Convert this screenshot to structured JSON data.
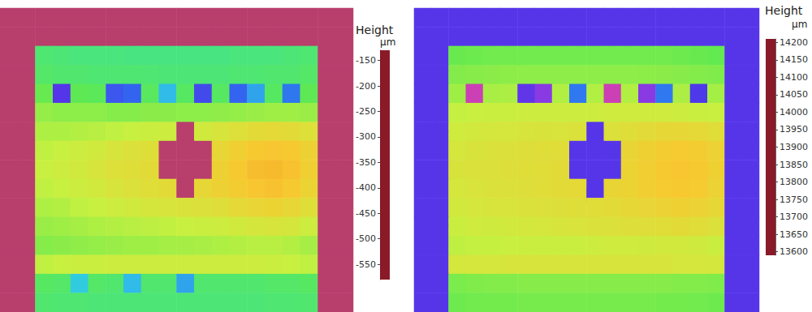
{
  "chart_data": [
    {
      "type": "heatmap",
      "tick_labels": false,
      "colorbar_label": "Height",
      "colorbar_unit": "µm",
      "colorbar_lim": [
        -580,
        -130
      ],
      "colorbar_ticks": [
        -150,
        -200,
        -250,
        -300,
        -350,
        -400,
        -450,
        -500,
        -550
      ],
      "cells": [
        [
          -545,
          -545,
          -545,
          -545,
          -545,
          -545,
          -545,
          -545,
          -545,
          -545,
          -545,
          -545,
          -545,
          -545,
          -545,
          -545,
          -545,
          -545,
          -545,
          -545
        ],
        [
          -545,
          -545,
          -545,
          -545,
          -545,
          -545,
          -545,
          -545,
          -545,
          -545,
          -545,
          -545,
          -545,
          -545,
          -545,
          -545,
          -545,
          -545,
          -545,
          -545
        ],
        [
          -545,
          -545,
          -270,
          -272,
          -275,
          -275,
          -275,
          -278,
          -278,
          -278,
          -278,
          -278,
          -278,
          -275,
          -275,
          -275,
          -272,
          -270,
          -545,
          -545
        ],
        [
          -545,
          -545,
          -265,
          -268,
          -268,
          -270,
          -270,
          -270,
          -270,
          -272,
          -272,
          -272,
          -272,
          -270,
          -270,
          -268,
          -268,
          -265,
          -545,
          -545
        ],
        [
          -545,
          -545,
          -250,
          -420,
          -255,
          -258,
          -390,
          -380,
          -260,
          -340,
          -262,
          -400,
          -262,
          -380,
          -350,
          -262,
          -370,
          -255,
          -545,
          -545
        ],
        [
          -545,
          -545,
          -232,
          -235,
          -235,
          -235,
          -238,
          -238,
          -236,
          -236,
          -235,
          -235,
          -234,
          -232,
          -230,
          -228,
          -228,
          -230,
          -545,
          -545
        ],
        [
          -545,
          -545,
          -222,
          -222,
          -220,
          -218,
          -215,
          -212,
          -210,
          -208,
          -545,
          -205,
          -200,
          -195,
          -190,
          -188,
          -190,
          -195,
          -545,
          -545
        ],
        [
          -545,
          -545,
          -215,
          -212,
          -208,
          -205,
          -200,
          -196,
          -193,
          -545,
          -545,
          -545,
          -185,
          -178,
          -172,
          -170,
          -172,
          -180,
          -545,
          -545
        ],
        [
          -545,
          -545,
          -212,
          -208,
          -205,
          -200,
          -195,
          -192,
          -190,
          -545,
          -545,
          -545,
          -180,
          -172,
          -166,
          -165,
          -168,
          -178,
          -545,
          -545
        ],
        [
          -545,
          -545,
          -215,
          -212,
          -208,
          -204,
          -200,
          -196,
          -192,
          -190,
          -545,
          -186,
          -180,
          -175,
          -170,
          -168,
          -172,
          -182,
          -545,
          -545
        ],
        [
          -545,
          -545,
          -222,
          -220,
          -215,
          -212,
          -208,
          -205,
          -202,
          -200,
          -198,
          -196,
          -192,
          -188,
          -184,
          -182,
          -185,
          -192,
          -545,
          -545
        ],
        [
          -545,
          -545,
          -230,
          -228,
          -225,
          -222,
          -220,
          -218,
          -216,
          -214,
          -212,
          -210,
          -208,
          -205,
          -202,
          -200,
          -202,
          -208,
          -545,
          -545
        ],
        [
          -545,
          -545,
          -238,
          -236,
          -234,
          -232,
          -230,
          -228,
          -228,
          -226,
          -225,
          -224,
          -222,
          -220,
          -218,
          -218,
          -220,
          -225,
          -545,
          -545
        ],
        [
          -545,
          -545,
          -215,
          -212,
          -210,
          -210,
          -208,
          -208,
          -208,
          -208,
          -208,
          -208,
          -208,
          -208,
          -208,
          -210,
          -212,
          -215,
          -545,
          -545
        ],
        [
          -545,
          -545,
          -262,
          -265,
          -330,
          -265,
          -268,
          -340,
          -268,
          -268,
          -350,
          -268,
          -268,
          -268,
          -268,
          -265,
          -265,
          -262,
          -545,
          -545
        ],
        [
          -545,
          -545,
          -268,
          -270,
          -270,
          -272,
          -272,
          -272,
          -272,
          -272,
          -272,
          -272,
          -272,
          -272,
          -272,
          -270,
          -270,
          -268,
          -545,
          -545
        ]
      ]
    },
    {
      "type": "heatmap",
      "tick_labels": false,
      "colorbar_label": "Height",
      "colorbar_unit": "µm",
      "colorbar_lim": [
        13590,
        14210
      ],
      "colorbar_ticks": [
        14200,
        14150,
        14100,
        14050,
        14000,
        13950,
        13900,
        13850,
        13800,
        13750,
        13700,
        13650,
        13600
      ],
      "cells": [
        [
          13810,
          13810,
          13810,
          13810,
          13810,
          13810,
          13810,
          13810,
          13810,
          13810,
          13810,
          13810,
          13810,
          13810,
          13810,
          13810,
          13810,
          13810,
          13810,
          13810
        ],
        [
          13810,
          13810,
          13810,
          13810,
          13810,
          13810,
          13810,
          13810,
          13810,
          13810,
          13810,
          13810,
          13810,
          13810,
          13810,
          13810,
          13810,
          13810,
          13810,
          13810
        ],
        [
          13810,
          13810,
          14045,
          14048,
          14050,
          14050,
          14050,
          14050,
          14050,
          14050,
          14050,
          14050,
          14050,
          14050,
          14050,
          14048,
          14045,
          14042,
          13810,
          13810
        ],
        [
          13810,
          13810,
          14060,
          14062,
          14064,
          14065,
          14066,
          14066,
          14066,
          14066,
          14066,
          14066,
          14066,
          14065,
          14064,
          14062,
          14060,
          14058,
          13810,
          13810
        ],
        [
          13810,
          13810,
          14075,
          13700,
          14080,
          14082,
          13800,
          13760,
          14085,
          13880,
          14085,
          13700,
          14085,
          13760,
          13880,
          14082,
          13820,
          14078,
          13810,
          13810
        ],
        [
          13810,
          13810,
          14095,
          14098,
          14100,
          14100,
          14102,
          14102,
          14102,
          14102,
          14102,
          14104,
          14104,
          14104,
          14104,
          14102,
          14100,
          14098,
          13810,
          13810
        ],
        [
          13810,
          13810,
          14105,
          14108,
          14110,
          14112,
          14114,
          14115,
          14116,
          14118,
          13810,
          14120,
          14124,
          14128,
          14132,
          14132,
          14130,
          14125,
          13810,
          13810
        ],
        [
          13810,
          13810,
          14112,
          14115,
          14118,
          14120,
          14122,
          14124,
          14126,
          13810,
          13810,
          13810,
          14135,
          14142,
          14148,
          14150,
          14148,
          14140,
          13810,
          13810
        ],
        [
          13810,
          13810,
          14115,
          14118,
          14120,
          14122,
          14124,
          14126,
          14128,
          13810,
          13810,
          13810,
          14138,
          14145,
          14152,
          14155,
          14152,
          14142,
          13810,
          13810
        ],
        [
          13810,
          13810,
          14112,
          14116,
          14118,
          14120,
          14122,
          14125,
          14128,
          14130,
          13810,
          14135,
          14138,
          14145,
          14150,
          14152,
          14150,
          14140,
          13810,
          13810
        ],
        [
          13810,
          13810,
          14108,
          14112,
          14114,
          14116,
          14118,
          14120,
          14122,
          14124,
          14126,
          14128,
          14132,
          14136,
          14140,
          14142,
          14140,
          14132,
          13810,
          13810
        ],
        [
          13810,
          13810,
          14100,
          14104,
          14106,
          14108,
          14110,
          14112,
          14114,
          14116,
          14118,
          14120,
          14122,
          14124,
          14126,
          14128,
          14126,
          14120,
          13810,
          13810
        ],
        [
          13810,
          13810,
          14092,
          14095,
          14096,
          14098,
          14100,
          14100,
          14100,
          14100,
          14102,
          14104,
          14104,
          14106,
          14108,
          14108,
          14106,
          14100,
          13810,
          13810
        ],
        [
          13810,
          13810,
          14110,
          14112,
          14112,
          14114,
          14114,
          14114,
          14114,
          14114,
          14114,
          14114,
          14114,
          14114,
          14114,
          14112,
          14112,
          14110,
          13810,
          13810
        ],
        [
          13810,
          13810,
          14055,
          14058,
          14060,
          14060,
          14062,
          14062,
          14062,
          14062,
          14062,
          14062,
          14062,
          14062,
          14062,
          14060,
          14060,
          14058,
          13810,
          13810
        ],
        [
          13810,
          13810,
          14048,
          14050,
          14052,
          14052,
          14054,
          14054,
          14054,
          14054,
          14054,
          14054,
          14054,
          14054,
          14052,
          14052,
          14050,
          14048,
          13810,
          13810
        ]
      ]
    }
  ]
}
